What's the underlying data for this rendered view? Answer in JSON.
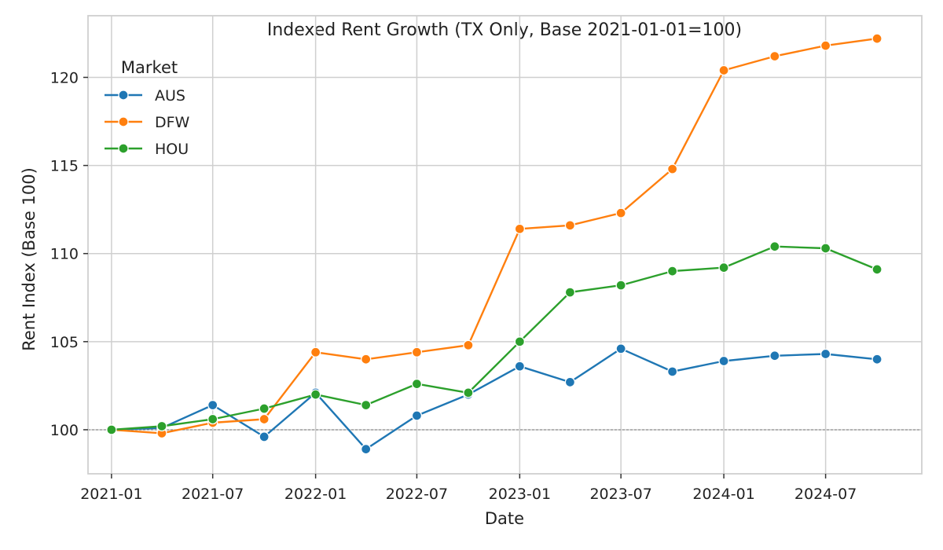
{
  "chart_data": {
    "type": "line",
    "title": "Indexed Rent Growth (TX Only, Base 2021-01-01=100)",
    "xlabel": "Date",
    "ylabel": "Rent Index (Base 100)",
    "x": [
      "2021-01-01",
      "2021-04-01",
      "2021-07-01",
      "2021-10-01",
      "2022-01-01",
      "2022-04-01",
      "2022-07-01",
      "2022-10-01",
      "2023-01-01",
      "2023-04-01",
      "2023-07-01",
      "2023-10-01",
      "2024-01-01",
      "2024-04-01",
      "2024-07-01",
      "2024-10-01"
    ],
    "xlim": [
      "2020-11-20",
      "2024-12-20"
    ],
    "ylim": [
      97.5,
      123.5
    ],
    "xticks": [
      "2021-01-01",
      "2021-07-01",
      "2022-01-01",
      "2022-07-01",
      "2023-01-01",
      "2023-07-01",
      "2024-01-01",
      "2024-07-01"
    ],
    "xtick_labels": [
      "2021-01",
      "2021-07",
      "2022-01",
      "2022-07",
      "2023-01",
      "2023-07",
      "2024-01",
      "2024-07"
    ],
    "yticks": [
      100,
      105,
      110,
      115,
      120
    ],
    "ytick_labels": [
      "100",
      "105",
      "110",
      "115",
      "120"
    ],
    "reference_line": 100,
    "grid": true,
    "legend": {
      "title": "Market",
      "position": "top-left"
    },
    "series": [
      {
        "name": "AUS",
        "color": "#1f77b4",
        "values": [
          100.0,
          100.1,
          101.4,
          99.6,
          102.1,
          98.9,
          100.8,
          102.0,
          103.6,
          102.7,
          104.6,
          103.3,
          103.9,
          104.2,
          104.3,
          104.0
        ]
      },
      {
        "name": "DFW",
        "color": "#ff7f0e",
        "values": [
          100.0,
          99.8,
          100.4,
          100.6,
          104.4,
          104.0,
          104.4,
          104.8,
          111.4,
          111.6,
          112.3,
          114.8,
          120.4,
          121.2,
          121.8,
          122.2
        ]
      },
      {
        "name": "HOU",
        "color": "#2ca02c",
        "values": [
          100.0,
          100.2,
          100.6,
          101.2,
          102.0,
          101.4,
          102.6,
          102.1,
          105.0,
          107.8,
          108.2,
          109.0,
          109.2,
          110.4,
          110.3,
          109.1
        ]
      }
    ]
  }
}
